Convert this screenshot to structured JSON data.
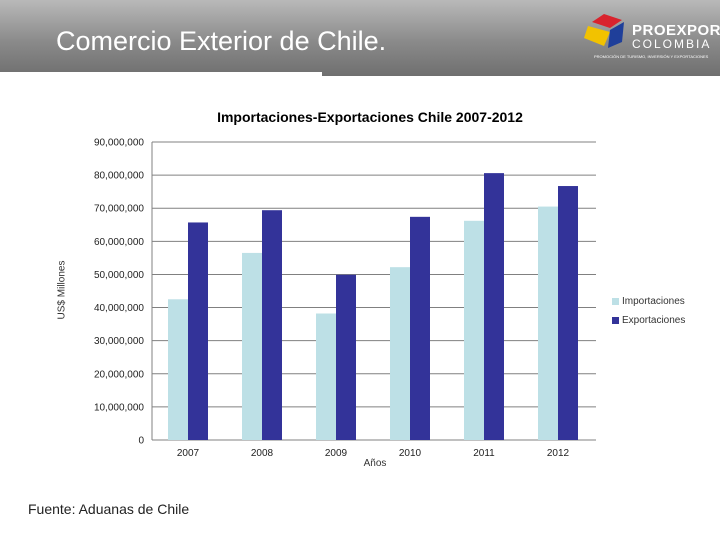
{
  "header": {
    "title": "Comercio Exterior de Chile.",
    "logo_word1": "PROEXPORT",
    "logo_word2": "COLOMBIA",
    "logo_tagline": "PROMOCIÓN DE TURISMO, INVERSIÓN Y EXPORTACIONES"
  },
  "footer": {
    "source": "Fuente: Aduanas de Chile"
  },
  "colors": {
    "importaciones": "#bde0e6",
    "exportaciones": "#333399",
    "gridline": "#808080"
  },
  "chart_data": {
    "type": "bar",
    "title": "Importaciones-Exportaciones Chile 2007-2012",
    "xlabel": "Años",
    "ylabel": "US$ Millones",
    "categories": [
      "2007",
      "2008",
      "2009",
      "2010",
      "2011",
      "2012"
    ],
    "series": [
      {
        "name": "Importaciones",
        "values": [
          42500000,
          56500000,
          38200000,
          52200000,
          66200000,
          70500000
        ]
      },
      {
        "name": "Exportaciones",
        "values": [
          65700000,
          69400000,
          49900000,
          67400000,
          80600000,
          76700000
        ]
      }
    ],
    "ylim": [
      0,
      90000000
    ],
    "yticks": [
      "0",
      "10,000,000",
      "20,000,000",
      "30,000,000",
      "40,000,000",
      "50,000,000",
      "60,000,000",
      "70,000,000",
      "80,000,000",
      "90,000,000"
    ],
    "grid": true,
    "legend": "right"
  }
}
